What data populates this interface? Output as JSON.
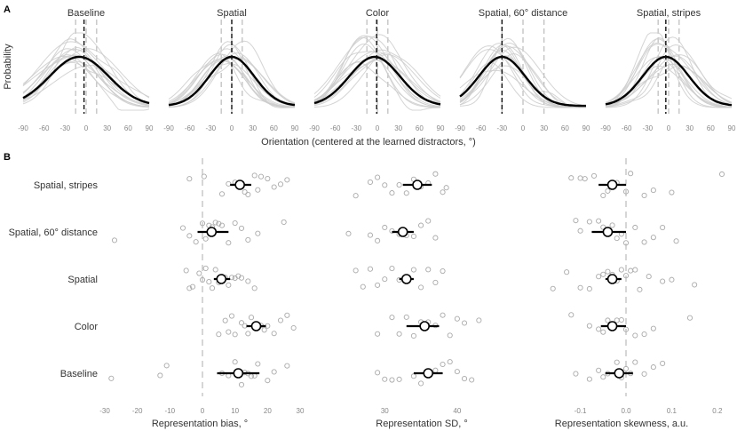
{
  "panel_labels": [
    "A",
    "B"
  ],
  "chart_data": [
    {
      "type": "line",
      "panel": "A",
      "ylabel": "Probability",
      "xlabel": "Orientation (centered at the learned distractors, °)",
      "xlim": [
        -90,
        90
      ],
      "xticks": [
        "-90",
        "-60",
        "-30",
        "0",
        "30",
        "60",
        "90"
      ],
      "subplots": [
        {
          "title": "Baseline",
          "peak": -10,
          "sd": 42,
          "vlines": [
            -15,
            0,
            15
          ],
          "mean_line": -3
        },
        {
          "title": "Spatial",
          "peak": 0,
          "sd": 32,
          "vlines": [
            -15,
            0,
            15
          ],
          "mean_line": 0
        },
        {
          "title": "Color",
          "peak": -4,
          "sd": 36,
          "vlines": [
            -15,
            0,
            15
          ],
          "mean_line": -1
        },
        {
          "title": "Spatial, 60° distance",
          "peak": -30,
          "sd": 33,
          "vlines": [
            -30,
            0,
            30
          ],
          "mean_line": -30
        },
        {
          "title": "Spatial, stripes",
          "peak": -4,
          "sd": 33,
          "vlines": [
            -15,
            0,
            15
          ],
          "mean_line": -4
        }
      ]
    },
    {
      "type": "scatter",
      "panel": "B",
      "categories": [
        "Spatial, stripes",
        "Spatial, 60° distance",
        "Spatial",
        "Color",
        "Baseline"
      ],
      "subplots": [
        {
          "xlabel": "Representation bias, °",
          "xlim": [
            -30,
            30
          ],
          "xticks": [
            "-30",
            "-20",
            "-10",
            "0",
            "10",
            "20",
            "30"
          ],
          "tick_values": [
            -30,
            -20,
            -10,
            0,
            10,
            20,
            30
          ],
          "ref_line": 0,
          "points": [
            [
              -4,
              0.5,
              6,
              8,
              10,
              12,
              13,
              14,
              16,
              17,
              18,
              20,
              22,
              24,
              26
            ],
            [
              -27,
              -6,
              -4,
              -2,
              0,
              1,
              2,
              3,
              4,
              5,
              6,
              8,
              10,
              12,
              14,
              17,
              25
            ],
            [
              -5,
              -4,
              -3,
              -1,
              0,
              1,
              2,
              3,
              4,
              5,
              6,
              7,
              8,
              9,
              10,
              11,
              12,
              14,
              16
            ],
            [
              5,
              7,
              8,
              9,
              10,
              12,
              13,
              14,
              15,
              16,
              17,
              18,
              19,
              20,
              22,
              24,
              26,
              28
            ],
            [
              -28,
              -13,
              -11,
              6,
              8,
              10,
              12,
              13,
              14,
              15,
              16,
              17,
              20,
              22,
              26
            ]
          ],
          "means": [
            11.5,
            2.8,
            5.8,
            16.5,
            11.0
          ],
          "ci": [
            [
              8.5,
              15.0
            ],
            [
              -1.5,
              8.0
            ],
            [
              3.5,
              8.5
            ],
            [
              13.5,
              19.5
            ],
            [
              4.5,
              17.5
            ]
          ]
        },
        {
          "xlabel": "Representation SD, °",
          "xlim": [
            22,
            47
          ],
          "xticks": [
            "30",
            "40"
          ],
          "tick_values": [
            30,
            40
          ],
          "points": [
            [
              26,
              28,
              29,
              30,
              31,
              32,
              33,
              34,
              35,
              36,
              37,
              38,
              38.5
            ],
            [
              25,
              28,
              29,
              30,
              31,
              32,
              33,
              34,
              35,
              36,
              37
            ],
            [
              26,
              27,
              28,
              29,
              30,
              31,
              32,
              33,
              34,
              35,
              36,
              37,
              38
            ],
            [
              29,
              31,
              32,
              33,
              34,
              35,
              36,
              37,
              38,
              39,
              40,
              41,
              43
            ],
            [
              29,
              30,
              31,
              32,
              34,
              35,
              36,
              37,
              38,
              39,
              40,
              41,
              42
            ]
          ],
          "means": [
            34.5,
            32.5,
            33.0,
            35.5,
            36.0
          ],
          "ci": [
            [
              32.5,
              36.5
            ],
            [
              31.0,
              34.0
            ],
            [
              32.0,
              34.0
            ],
            [
              33.0,
              37.5
            ],
            [
              34.0,
              38.0
            ]
          ]
        },
        {
          "xlabel": "Representation skewness, a.u.",
          "xlim": [
            -0.21,
            0.21
          ],
          "xticks": [
            "-0.1",
            "0.0",
            "0.1",
            "0.2"
          ],
          "tick_values": [
            -0.1,
            0,
            0.1,
            0.2
          ],
          "ref_line": 0,
          "points": [
            [
              -0.12,
              -0.1,
              -0.09,
              -0.07,
              -0.05,
              -0.04,
              -0.03,
              -0.02,
              0,
              0.01,
              0.04,
              0.06,
              0.1,
              0.21
            ],
            [
              -0.11,
              -0.1,
              -0.08,
              -0.06,
              -0.05,
              -0.04,
              -0.03,
              -0.02,
              -0.01,
              0,
              0.02,
              0.04,
              0.06,
              0.08,
              0.11
            ],
            [
              -0.16,
              -0.13,
              -0.1,
              -0.08,
              -0.06,
              -0.05,
              -0.04,
              -0.03,
              -0.02,
              -0.01,
              0,
              0.01,
              0.02,
              0.03,
              0.05,
              0.08,
              0.1,
              0.15
            ],
            [
              -0.12,
              -0.08,
              -0.06,
              -0.05,
              -0.04,
              -0.03,
              -0.02,
              -0.01,
              0,
              0.02,
              0.04,
              0.06,
              0.14
            ],
            [
              -0.11,
              -0.08,
              -0.06,
              -0.05,
              -0.04,
              -0.02,
              -0.01,
              0,
              0.01,
              0.02,
              0.04,
              0.06,
              0.08
            ]
          ],
          "means": [
            -0.03,
            -0.04,
            -0.03,
            -0.03,
            -0.015
          ],
          "ci": [
            [
              -0.06,
              0.0
            ],
            [
              -0.075,
              0.0
            ],
            [
              -0.045,
              -0.01
            ],
            [
              -0.055,
              0.0
            ],
            [
              -0.045,
              0.015
            ]
          ]
        }
      ]
    }
  ]
}
